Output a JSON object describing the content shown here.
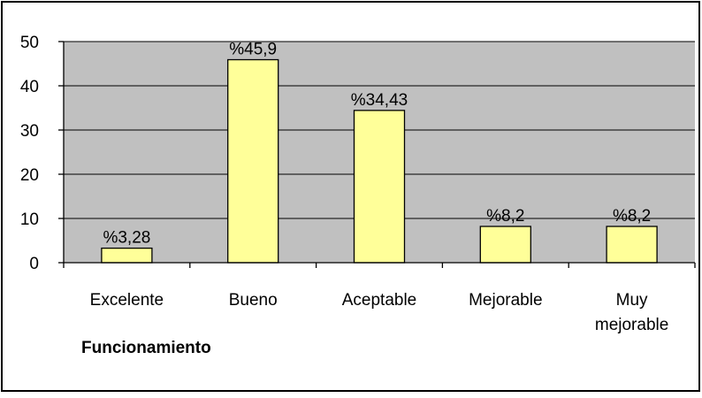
{
  "chart_data": {
    "type": "bar",
    "categories": [
      "Excelente",
      "Bueno",
      "Aceptable",
      "Mejorable",
      "Muy mejorable"
    ],
    "category_lines": [
      [
        "Excelente"
      ],
      [
        "Bueno"
      ],
      [
        "Aceptable"
      ],
      [
        "Mejorable"
      ],
      [
        "Muy",
        "mejorable"
      ]
    ],
    "values": [
      3.28,
      45.9,
      34.43,
      8.2,
      8.2
    ],
    "data_labels": [
      "%3,28",
      "%45,9",
      "%34,43",
      "%8,2",
      "%8,2"
    ],
    "y_ticks": [
      "0",
      "10",
      "20",
      "30",
      "40",
      "50"
    ],
    "ylim": [
      0,
      50
    ],
    "title": "Funcionamiento",
    "xlabel": "",
    "ylabel": "",
    "grid": true,
    "colors": {
      "bar_fill": "#ffff99",
      "bar_stroke": "#000000",
      "plot_background": "#c0c0c0",
      "gridline": "#000000"
    }
  }
}
